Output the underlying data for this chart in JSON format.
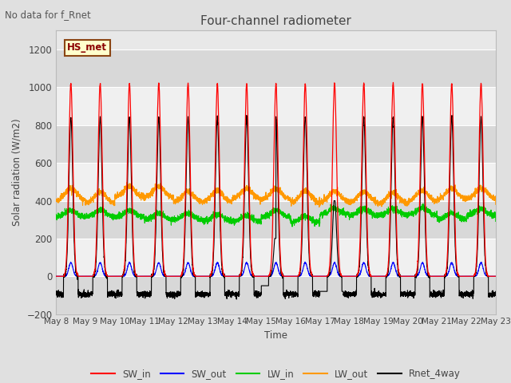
{
  "title": "Four-channel radiometer",
  "annotation": "No data for f_Rnet",
  "station_label": "HS_met",
  "ylabel": "Solar radiation (W/m2)",
  "xlabel": "Time",
  "ylim": [
    -200,
    1300
  ],
  "yticks": [
    -200,
    0,
    200,
    400,
    600,
    800,
    1000,
    1200
  ],
  "x_tick_labels": [
    "May 8",
    "May 9",
    "May 10",
    "May 11",
    "May 12",
    "May 13",
    "May 14",
    "May 15",
    "May 16",
    "May 17",
    "May 18",
    "May 19",
    "May 20",
    "May 21",
    "May 22",
    "May 23"
  ],
  "colors": {
    "SW_in": "#ff0000",
    "SW_out": "#0000ff",
    "LW_in": "#00cc00",
    "LW_out": "#ff9900",
    "Rnet_4way": "#000000"
  },
  "fig_bg": "#e0e0e0",
  "plot_bg": "#e8e8e8",
  "band_light": "#f0f0f0",
  "band_dark": "#d8d8d8",
  "grid_color": "#ffffff"
}
